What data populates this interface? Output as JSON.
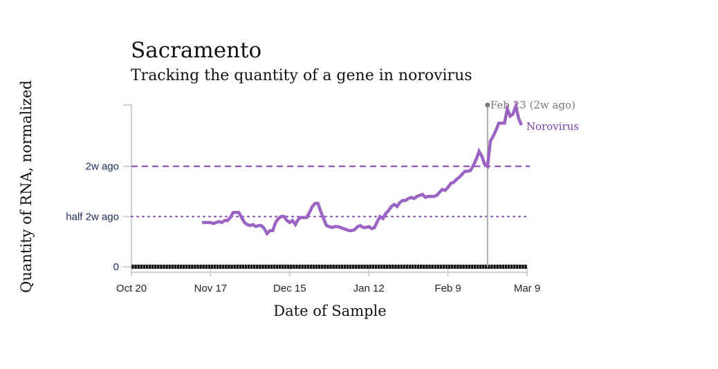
{
  "chart_data": {
    "type": "line",
    "title": "Sacramento",
    "subtitle": "Tracking the quantity of a gene in norovirus",
    "xlabel": "Date of Sample",
    "ylabel": "Quantity of RNA, normalized",
    "x_start_date": "Oct 20",
    "xlim_days": [
      0,
      140
    ],
    "ylim": [
      0,
      1.61
    ],
    "x_ticks": [
      {
        "label": "Oct 20",
        "day": 0
      },
      {
        "label": "Nov 17",
        "day": 28
      },
      {
        "label": "Dec 15",
        "day": 56
      },
      {
        "label": "Jan 12",
        "day": 84
      },
      {
        "label": "Feb 9",
        "day": 112
      },
      {
        "label": "Mar 9",
        "day": 140
      }
    ],
    "y_ticks": [
      {
        "label": "0",
        "value": 0
      },
      {
        "label": "half 2w ago",
        "value": 0.5
      },
      {
        "label": "2w ago",
        "value": 1.0
      }
    ],
    "reference_lines": [
      {
        "name": "2w ago",
        "value": 1.0,
        "style": "dashed",
        "color": "#7b3fb0"
      },
      {
        "name": "half 2w ago",
        "value": 0.5,
        "style": "dotted",
        "color": "#7b3fb0"
      }
    ],
    "annotation": {
      "label": "Feb 23 (2w ago)",
      "day": 126
    },
    "series": [
      {
        "name": "Norovirus",
        "color": "#9b63c4",
        "points": [
          [
            25,
            0.44
          ],
          [
            26,
            0.44
          ],
          [
            27,
            0.44
          ],
          [
            28,
            0.44
          ],
          [
            29,
            0.43
          ],
          [
            30,
            0.44
          ],
          [
            31,
            0.45
          ],
          [
            32,
            0.44
          ],
          [
            33,
            0.46
          ],
          [
            34,
            0.46
          ],
          [
            35,
            0.49
          ],
          [
            36,
            0.54
          ],
          [
            37,
            0.54
          ],
          [
            38,
            0.54
          ],
          [
            39,
            0.49
          ],
          [
            40,
            0.44
          ],
          [
            41,
            0.42
          ],
          [
            42,
            0.41
          ],
          [
            43,
            0.42
          ],
          [
            44,
            0.4
          ],
          [
            45,
            0.41
          ],
          [
            46,
            0.41
          ],
          [
            47,
            0.38
          ],
          [
            48,
            0.33
          ],
          [
            49,
            0.36
          ],
          [
            50,
            0.36
          ],
          [
            51,
            0.44
          ],
          [
            52,
            0.48
          ],
          [
            53,
            0.5
          ],
          [
            54,
            0.5
          ],
          [
            55,
            0.46
          ],
          [
            56,
            0.44
          ],
          [
            57,
            0.46
          ],
          [
            58,
            0.42
          ],
          [
            59,
            0.47
          ],
          [
            60,
            0.49
          ],
          [
            61,
            0.49
          ],
          [
            62,
            0.49
          ],
          [
            63,
            0.54
          ],
          [
            64,
            0.6
          ],
          [
            65,
            0.63
          ],
          [
            66,
            0.63
          ],
          [
            67,
            0.55
          ],
          [
            68,
            0.48
          ],
          [
            69,
            0.41
          ],
          [
            70,
            0.4
          ],
          [
            71,
            0.39
          ],
          [
            72,
            0.4
          ],
          [
            73,
            0.4
          ],
          [
            74,
            0.39
          ],
          [
            75,
            0.38
          ],
          [
            76,
            0.37
          ],
          [
            77,
            0.36
          ],
          [
            78,
            0.36
          ],
          [
            79,
            0.37
          ],
          [
            80,
            0.4
          ],
          [
            81,
            0.41
          ],
          [
            82,
            0.39
          ],
          [
            83,
            0.39
          ],
          [
            84,
            0.4
          ],
          [
            85,
            0.38
          ],
          [
            86,
            0.39
          ],
          [
            87,
            0.45
          ],
          [
            88,
            0.5
          ],
          [
            89,
            0.48
          ],
          [
            90,
            0.53
          ],
          [
            91,
            0.56
          ],
          [
            92,
            0.6
          ],
          [
            93,
            0.62
          ],
          [
            94,
            0.6
          ],
          [
            95,
            0.64
          ],
          [
            96,
            0.66
          ],
          [
            97,
            0.66
          ],
          [
            98,
            0.68
          ],
          [
            99,
            0.69
          ],
          [
            100,
            0.68
          ],
          [
            101,
            0.7
          ],
          [
            102,
            0.71
          ],
          [
            103,
            0.72
          ],
          [
            104,
            0.69
          ],
          [
            105,
            0.7
          ],
          [
            106,
            0.7
          ],
          [
            107,
            0.7
          ],
          [
            108,
            0.71
          ],
          [
            109,
            0.74
          ],
          [
            110,
            0.77
          ],
          [
            111,
            0.76
          ],
          [
            112,
            0.79
          ],
          [
            113,
            0.83
          ],
          [
            114,
            0.84
          ],
          [
            115,
            0.87
          ],
          [
            116,
            0.89
          ],
          [
            117,
            0.92
          ],
          [
            118,
            0.95
          ],
          [
            119,
            0.95
          ],
          [
            120,
            0.96
          ],
          [
            121,
            1.01
          ],
          [
            122,
            1.07
          ],
          [
            123,
            1.15
          ],
          [
            124,
            1.1
          ],
          [
            125,
            1.02
          ],
          [
            126,
            1.0
          ],
          [
            127,
            1.25
          ],
          [
            128,
            1.3
          ],
          [
            129,
            1.36
          ],
          [
            130,
            1.43
          ],
          [
            131,
            1.43
          ],
          [
            132,
            1.43
          ],
          [
            133,
            1.57
          ],
          [
            134,
            1.5
          ],
          [
            135,
            1.52
          ],
          [
            136,
            1.6
          ],
          [
            137,
            1.48
          ],
          [
            138,
            1.41
          ]
        ]
      }
    ],
    "day_markers": {
      "from_day": 0,
      "to_day": 139,
      "color": "#111111"
    },
    "grid": false,
    "legend": "inline-right"
  }
}
